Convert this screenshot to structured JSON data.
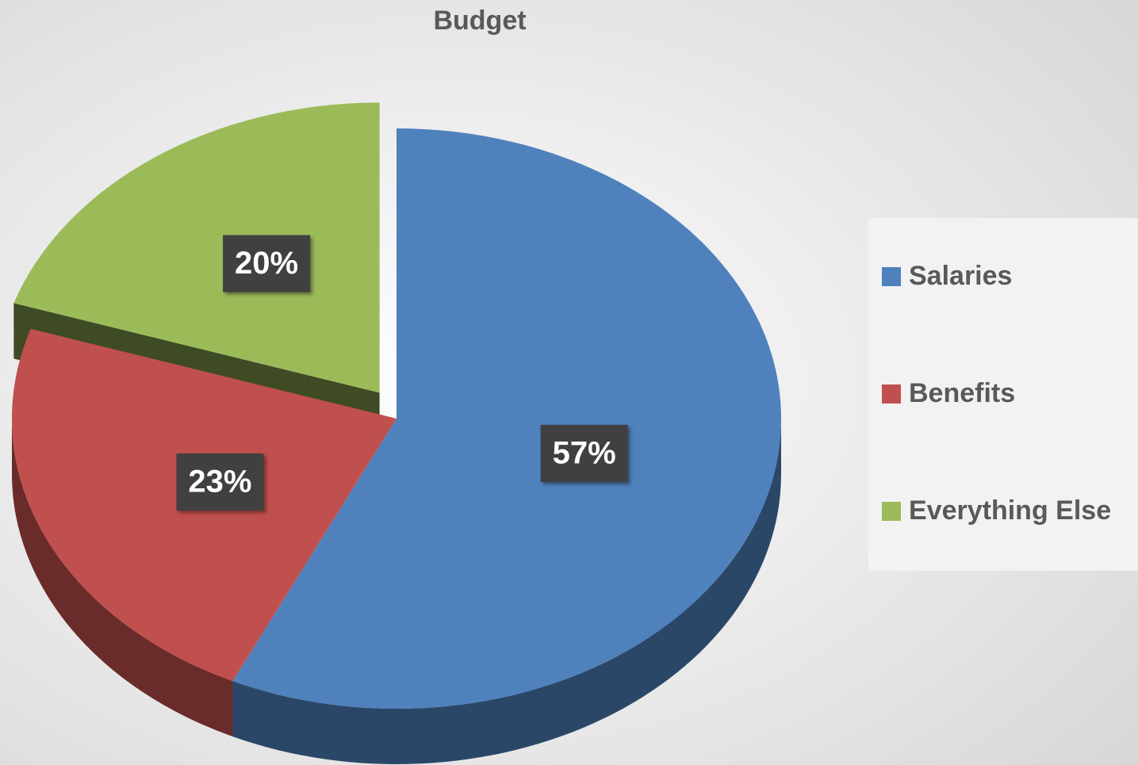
{
  "chart_data": {
    "type": "pie",
    "title": "Budget",
    "categories": [
      "Salaries",
      "Benefits",
      "Everything Else"
    ],
    "values": [
      57,
      23,
      20
    ],
    "value_labels": [
      "57%",
      "23%",
      "20%"
    ],
    "colors": [
      "#4f81bd",
      "#c0504d",
      "#9bbb59"
    ],
    "legend": "right"
  }
}
